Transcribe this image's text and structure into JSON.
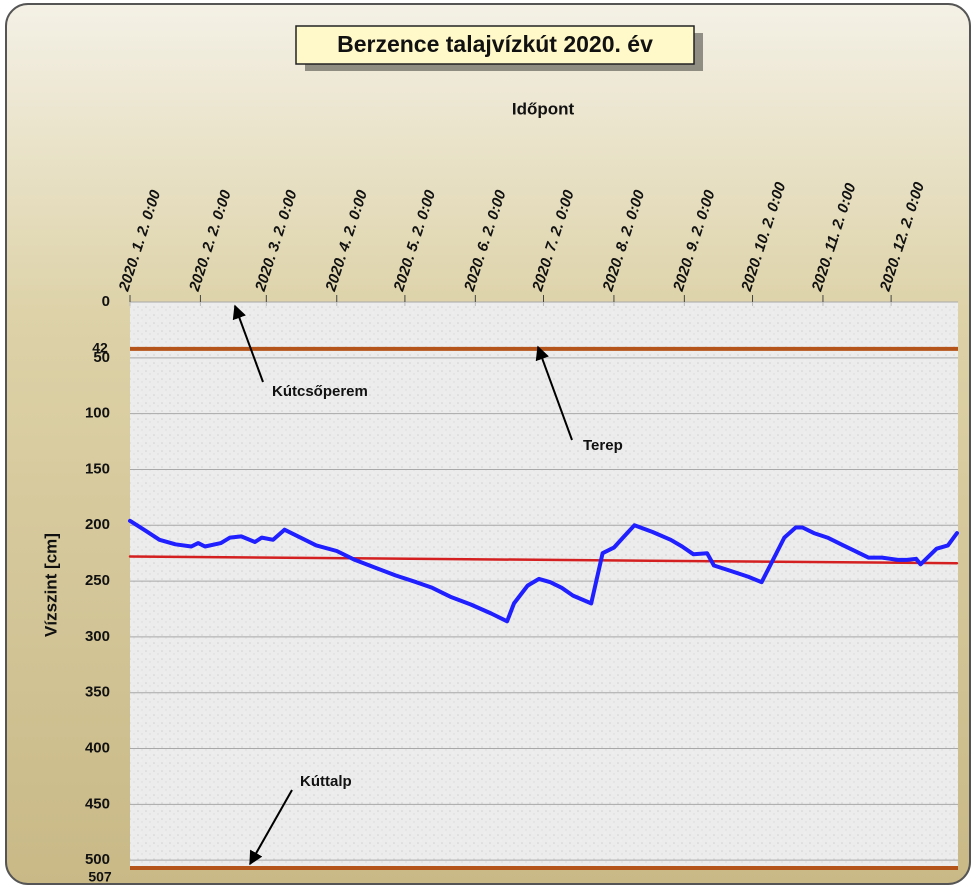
{
  "chart_data": {
    "type": "line",
    "title": "Berzence talajvízkút  2020. év",
    "x_label": "Időpont",
    "y_label": "Vízszint [cm]",
    "y_inverted": true,
    "grid": true,
    "xlim": [
      "2020-01-02",
      "2020-12-31"
    ],
    "xticks": [
      {
        "value": "2020-01-02",
        "label": "2020. 1. 2. 0:00"
      },
      {
        "value": "2020-02-02",
        "label": "2020. 2. 2. 0:00"
      },
      {
        "value": "2020-03-02",
        "label": "2020. 3. 2. 0:00"
      },
      {
        "value": "2020-04-02",
        "label": "2020. 4. 2. 0:00"
      },
      {
        "value": "2020-05-02",
        "label": "2020. 5. 2. 0:00"
      },
      {
        "value": "2020-06-02",
        "label": "2020. 6. 2. 0:00"
      },
      {
        "value": "2020-07-02",
        "label": "2020. 7. 2. 0:00"
      },
      {
        "value": "2020-08-02",
        "label": "2020. 8. 2. 0:00"
      },
      {
        "value": "2020-09-02",
        "label": "2020. 9. 2. 0:00"
      },
      {
        "value": "2020-10-02",
        "label": "2020. 10. 2. 0:00"
      },
      {
        "value": "2020-11-02",
        "label": "2020. 11. 2. 0:00"
      },
      {
        "value": "2020-12-02",
        "label": "2020. 12. 2. 0:00"
      }
    ],
    "ylim": [
      0,
      507
    ],
    "yticks": [
      0,
      50,
      100,
      150,
      200,
      250,
      300,
      350,
      400,
      450,
      500
    ],
    "reference_lines": [
      42,
      507
    ],
    "reference_color": "#b5541a",
    "x": [
      "2020-01-02",
      "2020-01-09",
      "2020-01-15",
      "2020-01-22",
      "2020-01-29",
      "2020-02-01",
      "2020-02-04",
      "2020-02-11",
      "2020-02-15",
      "2020-02-20",
      "2020-02-26",
      "2020-02-29",
      "2020-03-05",
      "2020-03-10",
      "2020-03-17",
      "2020-03-24",
      "2020-04-02",
      "2020-04-10",
      "2020-04-19",
      "2020-04-28",
      "2020-05-07",
      "2020-05-14",
      "2020-05-22",
      "2020-05-31",
      "2020-06-09",
      "2020-06-16",
      "2020-06-19",
      "2020-06-25",
      "2020-06-30",
      "2020-07-05",
      "2020-07-10",
      "2020-07-15",
      "2020-07-23",
      "2020-07-28",
      "2020-08-02",
      "2020-08-06",
      "2020-08-11",
      "2020-08-19",
      "2020-08-27",
      "2020-09-01",
      "2020-09-06",
      "2020-09-12",
      "2020-09-15",
      "2020-09-21",
      "2020-09-30",
      "2020-10-06",
      "2020-10-11",
      "2020-10-16",
      "2020-10-21",
      "2020-10-24",
      "2020-10-29",
      "2020-11-04",
      "2020-11-11",
      "2020-11-15",
      "2020-11-22",
      "2020-11-28",
      "2020-12-05",
      "2020-12-09",
      "2020-12-13",
      "2020-12-15",
      "2020-12-22",
      "2020-12-27",
      "2020-12-31"
    ],
    "series": [
      {
        "color": "#1f1fff",
        "values": [
          196,
          205,
          213,
          217,
          219,
          216,
          219,
          216,
          211,
          210,
          215,
          211,
          213,
          204,
          211,
          218,
          223,
          231,
          238,
          245,
          251,
          256,
          264,
          271,
          279,
          286,
          270,
          254,
          248,
          251,
          256,
          263,
          270,
          225,
          220,
          211,
          200,
          206,
          213,
          219,
          226,
          225,
          236,
          240,
          246,
          251,
          231,
          211,
          202,
          202,
          207,
          211,
          218,
          222,
          229,
          229,
          231,
          231,
          230,
          235,
          221,
          218,
          207
        ]
      }
    ],
    "trend": {
      "color": "#d42020",
      "x": [
        "2020-01-02",
        "2020-12-31"
      ],
      "values": [
        228,
        234
      ]
    },
    "annotations": [
      "Kútcsőperem",
      "Terep",
      "Kúttalp"
    ]
  }
}
